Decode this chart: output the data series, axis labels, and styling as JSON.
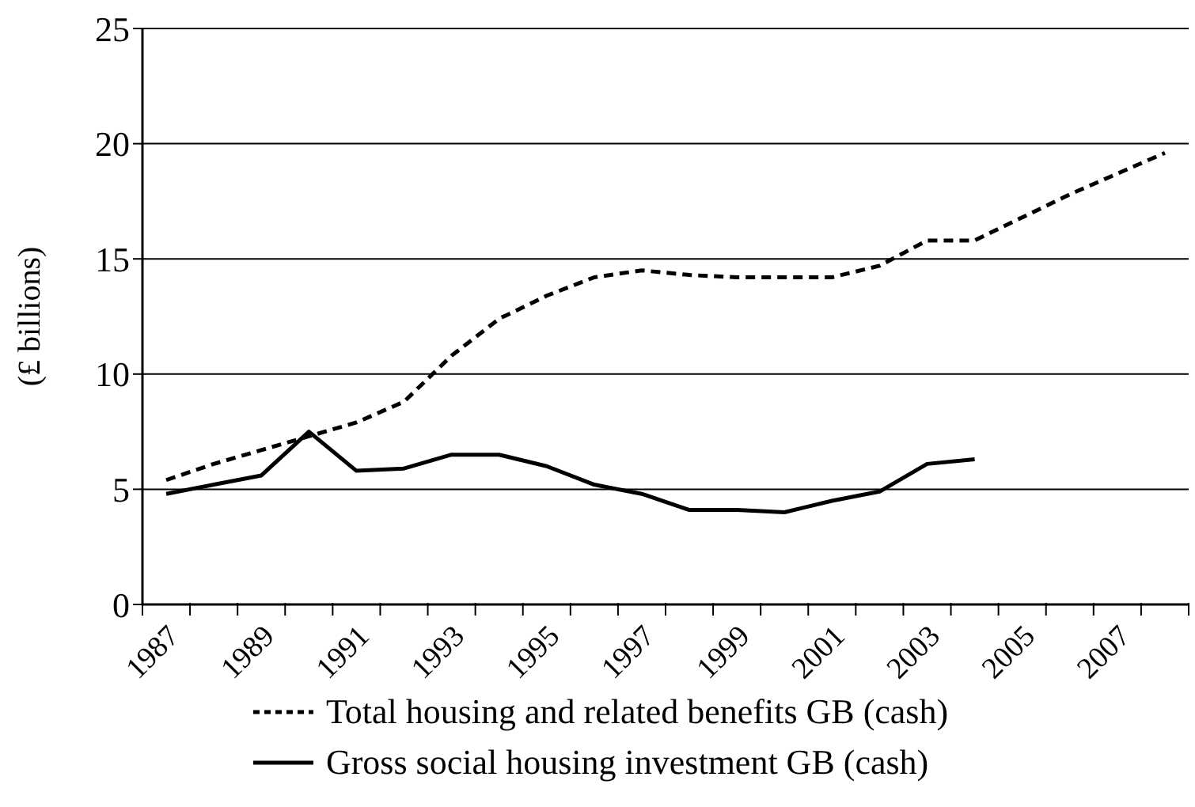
{
  "chart_data": {
    "type": "line",
    "ylabel": "(£ billions)",
    "categories": [
      "1987",
      null,
      "1989",
      null,
      "1991",
      null,
      "1993",
      null,
      "1995",
      null,
      "1997",
      null,
      "1999",
      null,
      "2001",
      null,
      "2003",
      null,
      "2005",
      null,
      "2007",
      null
    ],
    "series": [
      {
        "name": "Total housing and related benefits GB (cash)",
        "color": "#000000",
        "line_style": "dashed",
        "values": [
          5.4,
          6.1,
          6.7,
          7.3,
          7.9,
          8.8,
          10.8,
          12.4,
          13.4,
          14.2,
          14.5,
          14.3,
          14.2,
          14.2,
          14.2,
          14.7,
          15.8,
          15.8,
          16.8,
          17.8,
          18.7,
          19.6
        ]
      },
      {
        "name": "Gross social housing investment GB (cash)",
        "color": "#000000",
        "line_style": "solid",
        "values": [
          4.8,
          5.2,
          5.6,
          7.5,
          5.8,
          5.9,
          6.5,
          6.5,
          6.0,
          5.2,
          4.8,
          4.1,
          4.1,
          4.0,
          4.5,
          4.9,
          6.1,
          6.3,
          null,
          null,
          null,
          null
        ]
      }
    ],
    "ylim": [
      0,
      25
    ],
    "yticks": [
      0,
      5,
      10,
      15,
      20,
      25
    ],
    "grid": "y",
    "legend": "bottom",
    "marker": "none"
  }
}
